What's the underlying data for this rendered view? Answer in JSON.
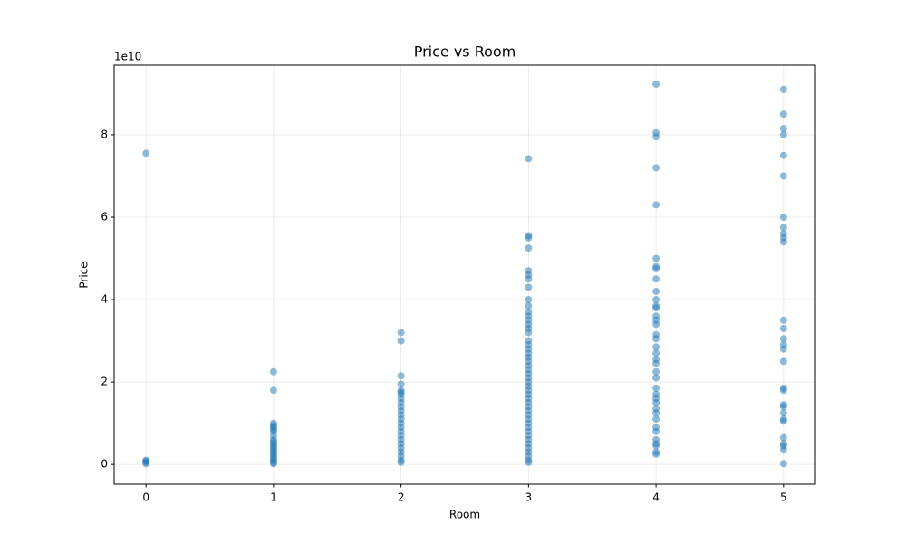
{
  "chart_data": {
    "type": "scatter",
    "title": "Price vs Room",
    "x_label": "Room",
    "y_label": "Price",
    "y_offset_label": "1e10",
    "color": "#1f77b4",
    "alpha": 0.5,
    "grid": true,
    "xlim": [
      -0.25,
      5.25
    ],
    "ylim": [
      -0.48,
      9.69
    ],
    "xticks": [
      0,
      1,
      2,
      3,
      4,
      5
    ],
    "yticks": [
      0,
      2,
      4,
      6,
      8
    ],
    "x": [
      0,
      0,
      0,
      0,
      0,
      1,
      1,
      1,
      1,
      1,
      1,
      1,
      1,
      1,
      1,
      1,
      1,
      1,
      1,
      1,
      1,
      1,
      1,
      1,
      1,
      1,
      2,
      2,
      2,
      2,
      2,
      2,
      2,
      2,
      2,
      2,
      2,
      2,
      2,
      2,
      2,
      2,
      2,
      2,
      2,
      2,
      2,
      2,
      2,
      2,
      3,
      3,
      3,
      3,
      3,
      3,
      3,
      3,
      3,
      3,
      3,
      3,
      3,
      3,
      3,
      3,
      3,
      3,
      3,
      3,
      3,
      3,
      3,
      3,
      3,
      3,
      3,
      3,
      3,
      3,
      3,
      3,
      3,
      3,
      3,
      3,
      3,
      3,
      3,
      3,
      3,
      3,
      3,
      3,
      3,
      3,
      3,
      4,
      4,
      4,
      4,
      4,
      4,
      4,
      4,
      4,
      4,
      4,
      4,
      4,
      4,
      4,
      4,
      4,
      4,
      4,
      4,
      4,
      4,
      4,
      4,
      4,
      4,
      4,
      4,
      4,
      4,
      4,
      4,
      4,
      4,
      4,
      4,
      4,
      4,
      5,
      5,
      5,
      5,
      5,
      5,
      5,
      5,
      5,
      5,
      5,
      5,
      5,
      5,
      5,
      5,
      5,
      5,
      5,
      5,
      5,
      5,
      5,
      5,
      5,
      5,
      5,
      5,
      5
    ],
    "values": [
      7.55,
      0.1,
      0.08,
      0.05,
      0.02,
      2.25,
      1.8,
      1.0,
      0.95,
      0.9,
      0.85,
      0.8,
      0.7,
      0.6,
      0.55,
      0.5,
      0.45,
      0.4,
      0.35,
      0.3,
      0.25,
      0.2,
      0.15,
      0.1,
      0.05,
      0.02,
      3.2,
      3.0,
      2.15,
      1.95,
      1.8,
      1.75,
      1.7,
      1.6,
      1.5,
      1.4,
      1.3,
      1.2,
      1.1,
      1.0,
      0.9,
      0.8,
      0.7,
      0.6,
      0.5,
      0.4,
      0.3,
      0.2,
      0.1,
      0.05,
      7.42,
      5.55,
      5.5,
      5.25,
      4.7,
      4.6,
      4.5,
      4.3,
      4.0,
      3.85,
      3.7,
      3.6,
      3.5,
      3.4,
      3.3,
      3.2,
      3.0,
      2.9,
      2.8,
      2.7,
      2.6,
      2.5,
      2.4,
      2.3,
      2.2,
      2.1,
      2.0,
      1.9,
      1.8,
      1.7,
      1.6,
      1.5,
      1.4,
      1.3,
      1.2,
      1.1,
      1.0,
      0.9,
      0.8,
      0.7,
      0.6,
      0.5,
      0.4,
      0.3,
      0.2,
      0.1,
      0.05,
      9.23,
      8.05,
      7.95,
      7.2,
      6.3,
      5.0,
      4.8,
      4.75,
      4.5,
      4.2,
      4.0,
      3.85,
      3.8,
      3.6,
      3.5,
      3.4,
      3.15,
      3.05,
      2.85,
      2.7,
      2.55,
      2.45,
      2.25,
      2.1,
      1.85,
      1.7,
      1.6,
      1.5,
      1.35,
      1.25,
      1.1,
      0.9,
      0.8,
      0.6,
      0.5,
      0.45,
      0.3,
      0.25,
      9.1,
      8.5,
      8.15,
      8.0,
      7.5,
      7.0,
      6.0,
      5.75,
      5.6,
      5.5,
      5.4,
      3.5,
      3.3,
      3.05,
      2.9,
      2.8,
      2.5,
      1.85,
      1.8,
      1.45,
      1.4,
      1.25,
      1.1,
      1.05,
      0.65,
      0.5,
      0.45,
      0.35,
      0.02
    ]
  }
}
